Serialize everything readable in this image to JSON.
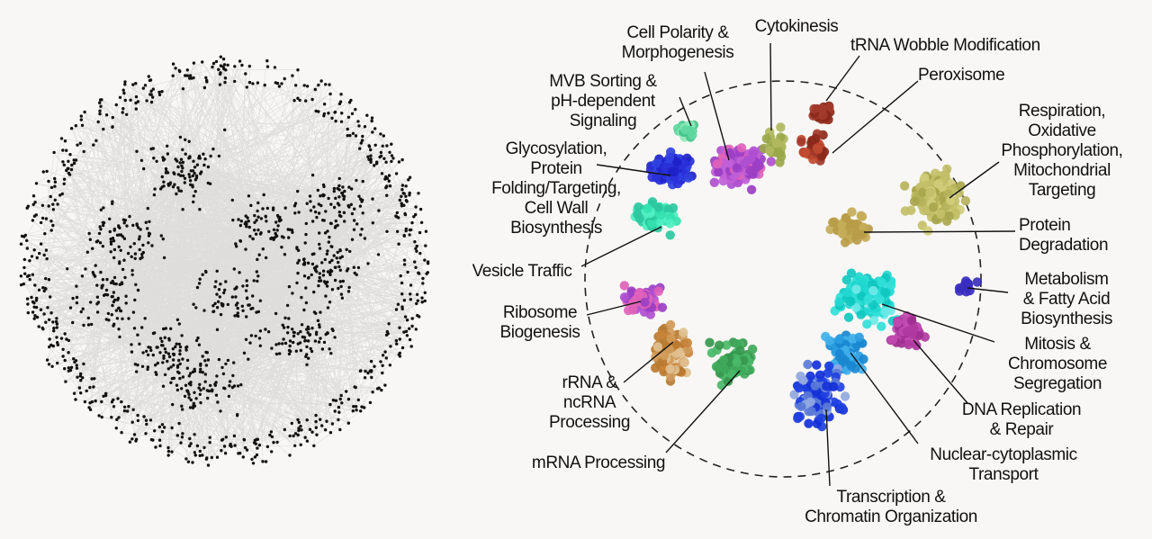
{
  "figure": {
    "left_panel": {
      "name": "unclustered-network"
    },
    "right_panel": {
      "clusters": [
        {
          "id": "cell-polarity",
          "label_lines": [
            "Cell Polarity &",
            "Morphogenesis"
          ],
          "color": "#9b3fc4"
        },
        {
          "id": "cytokinesis",
          "label_lines": [
            "Cytokinesis"
          ],
          "color": "#9aa84a"
        },
        {
          "id": "trna-wobble",
          "label_lines": [
            "tRNA Wobble Modification"
          ],
          "color": "#8b2a1c"
        },
        {
          "id": "peroxisome",
          "label_lines": [
            "Peroxisome"
          ],
          "color": "#8b2a1c"
        },
        {
          "id": "mvb-sorting",
          "label_lines": [
            "MVB Sorting &",
            "pH-dependent",
            "Signaling"
          ],
          "color": "#3fc48a"
        },
        {
          "id": "respiration",
          "label_lines": [
            "Respiration,",
            "Oxidative",
            "Phosphorylation,",
            "Mitochondrial",
            "Targeting"
          ],
          "color": "#b5b25a"
        },
        {
          "id": "glycosylation",
          "label_lines": [
            "Glycosylation,",
            "Protein",
            "Folding/Targeting,",
            "Cell Wall",
            "Biosynthesis"
          ],
          "color": "#1e22c8"
        },
        {
          "id": "protein-degradation",
          "label_lines": [
            "Protein",
            "Degradation"
          ],
          "color": "#c4ac58"
        },
        {
          "id": "vesicle-traffic",
          "label_lines": [
            "Vesicle Traffic"
          ],
          "color": "#35e2b0"
        },
        {
          "id": "metabolism",
          "label_lines": [
            "Metabolism",
            "& Fatty Acid",
            "Biosynthesis"
          ],
          "color": "#3a2ec0"
        },
        {
          "id": "ribosome",
          "label_lines": [
            "Ribosome",
            "Biogenesis"
          ],
          "color": "#9b3fc4"
        },
        {
          "id": "mitosis",
          "label_lines": [
            "Mitosis &",
            "Chromosome",
            "Segregation"
          ],
          "color": "#1fd8d0"
        },
        {
          "id": "rrna",
          "label_lines": [
            "rRNA &",
            "ncRNA",
            "Processing"
          ],
          "color": "#c8843a"
        },
        {
          "id": "dna-replication",
          "label_lines": [
            "DNA Replication",
            "& Repair"
          ],
          "color": "#b03aa0"
        },
        {
          "id": "mrna",
          "label_lines": [
            "mRNA Processing"
          ],
          "color": "#3fa85a"
        },
        {
          "id": "nuclear-transport",
          "label_lines": [
            "Nuclear-cytoplasmic",
            "Transport"
          ],
          "color": "#2a9ce0"
        },
        {
          "id": "transcription",
          "label_lines": [
            "Transcription &",
            "Chromatin Organization"
          ],
          "color": "#1430d8"
        }
      ]
    }
  }
}
